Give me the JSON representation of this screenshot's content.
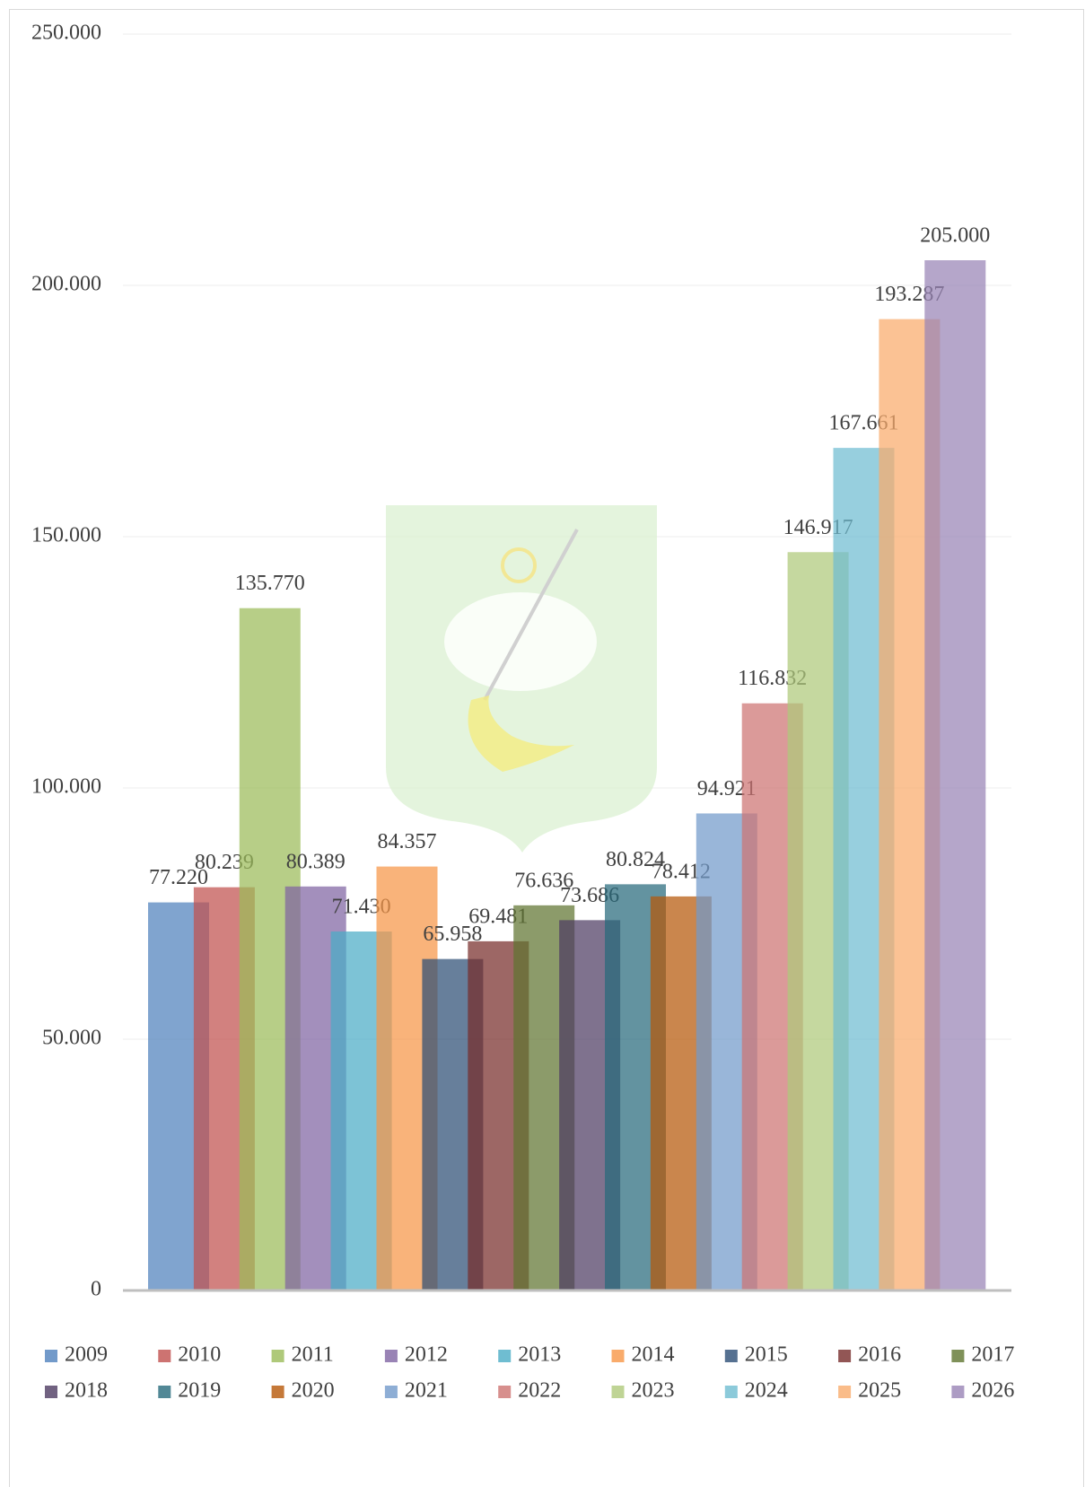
{
  "chart_data": {
    "type": "bar",
    "grid": true,
    "ylim": [
      0,
      250000
    ],
    "yticks": [
      0,
      {
        "value": 50000,
        "label": "50.000"
      },
      {
        "value": 100000,
        "label": "100.000"
      },
      {
        "value": 150000,
        "label": "150.000"
      },
      {
        "value": 200000,
        "label": "200.000"
      },
      {
        "value": 250000,
        "label": "250.000"
      }
    ],
    "legend": "bottom",
    "series": [
      {
        "name": "2009",
        "color": "#4f81bd",
        "values": [
          77220
        ],
        "value_labels": [
          "77.220"
        ]
      },
      {
        "name": "2010",
        "color": "#c0504d",
        "values": [
          80239
        ],
        "value_labels": [
          "80.239"
        ]
      },
      {
        "name": "2011",
        "color": "#9bbb59",
        "values": [
          135770
        ],
        "value_labels": [
          "135.770"
        ]
      },
      {
        "name": "2012",
        "color": "#8064a2",
        "values": [
          80389
        ],
        "value_labels": [
          "80.389"
        ]
      },
      {
        "name": "2013",
        "color": "#4bacc6",
        "values": [
          71430
        ],
        "value_labels": [
          "71.430"
        ]
      },
      {
        "name": "2014",
        "color": "#f79646",
        "values": [
          84357
        ],
        "value_labels": [
          "84.357"
        ]
      },
      {
        "name": "2015",
        "color": "#2c4d75",
        "values": [
          65958
        ],
        "value_labels": [
          "65.958"
        ]
      },
      {
        "name": "2016",
        "color": "#772c2a",
        "values": [
          69481
        ],
        "value_labels": [
          "69.481"
        ]
      },
      {
        "name": "2017",
        "color": "#5f7530",
        "values": [
          76636
        ],
        "value_labels": [
          "76.636"
        ]
      },
      {
        "name": "2018",
        "color": "#4d3b62",
        "values": [
          73686
        ],
        "value_labels": [
          "73.686"
        ]
      },
      {
        "name": "2019",
        "color": "#276a7c",
        "values": [
          80824
        ],
        "value_labels": [
          "80.824"
        ]
      },
      {
        "name": "2020",
        "color": "#b65708",
        "values": [
          78412
        ],
        "value_labels": [
          "78.412"
        ]
      },
      {
        "name": "2021",
        "color": "#729aca",
        "values": [
          94921
        ],
        "value_labels": [
          "94.921"
        ]
      },
      {
        "name": "2022",
        "color": "#cd7371",
        "values": [
          116832
        ],
        "value_labels": [
          "116.832"
        ]
      },
      {
        "name": "2023",
        "color": "#afc97a",
        "values": [
          146917
        ],
        "value_labels": [
          "146.917"
        ]
      },
      {
        "name": "2024",
        "color": "#6fbdd1",
        "values": [
          167661
        ],
        "value_labels": [
          "167.661"
        ]
      },
      {
        "name": "2025",
        "color": "#f9ab6b",
        "values": [
          193287
        ],
        "value_labels": [
          "193.287"
        ]
      },
      {
        "name": "2026",
        "color": "#9983b5",
        "values": [
          205000
        ],
        "value_labels": [
          "205.000"
        ]
      }
    ]
  }
}
